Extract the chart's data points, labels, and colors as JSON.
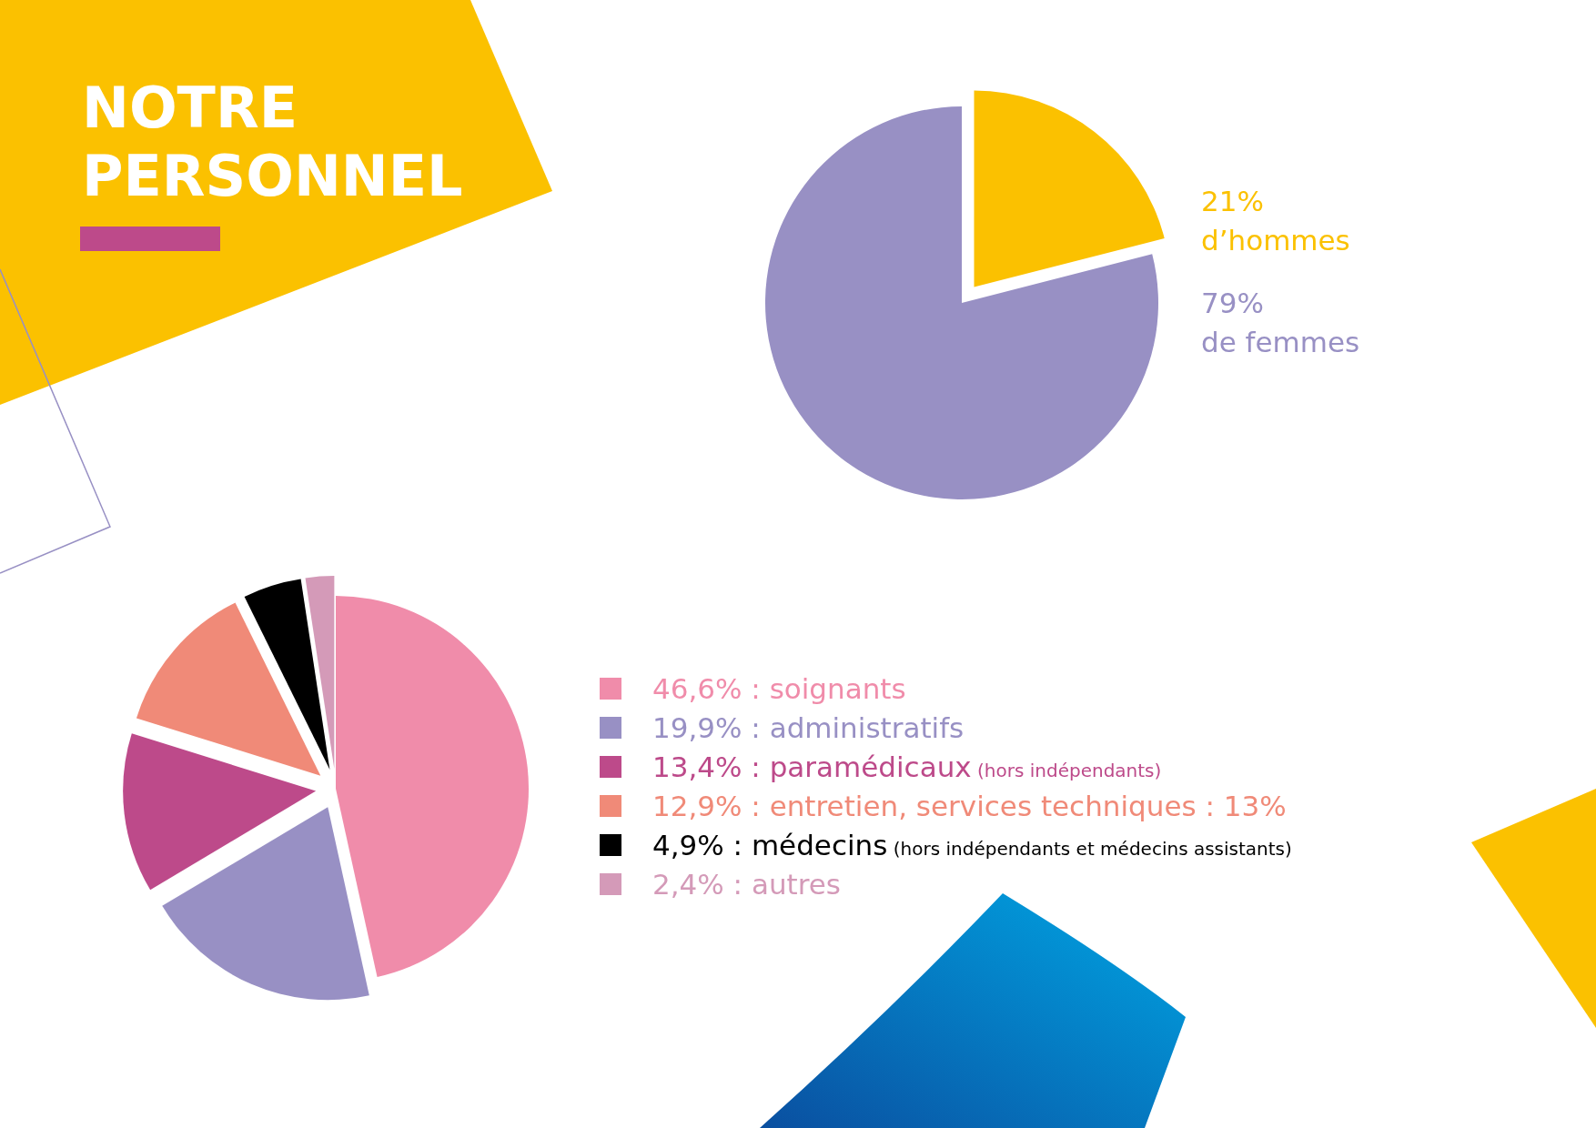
{
  "chart_data": [
    {
      "type": "pie",
      "title": "NOTRE PERSONNEL",
      "categories": [
        "d’hommes",
        "de femmes"
      ],
      "values": [
        21,
        79
      ],
      "colors": [
        "#fbc100",
        "#9890c4"
      ],
      "value_labels": [
        "21%",
        "79%"
      ],
      "legend": false
    },
    {
      "type": "pie",
      "categories": [
        "46,6% : soignants",
        "19,9% : administratifs",
        "13,4% : paramédicaux (hors indépendants)",
        "12,9% : entretien, services techniques : 13%",
        "4,9% : médecins (hors indépendants et médecins assistants)",
        "2,4% : autres"
      ],
      "values": [
        46.6,
        19.9,
        13.4,
        12.9,
        4.9,
        2.4
      ],
      "colors": [
        "#f08caa",
        "#9890c4",
        "#bd4a8a",
        "#f08a78",
        "#000000",
        "#d49ab8"
      ],
      "legend": "right"
    }
  ]
}
